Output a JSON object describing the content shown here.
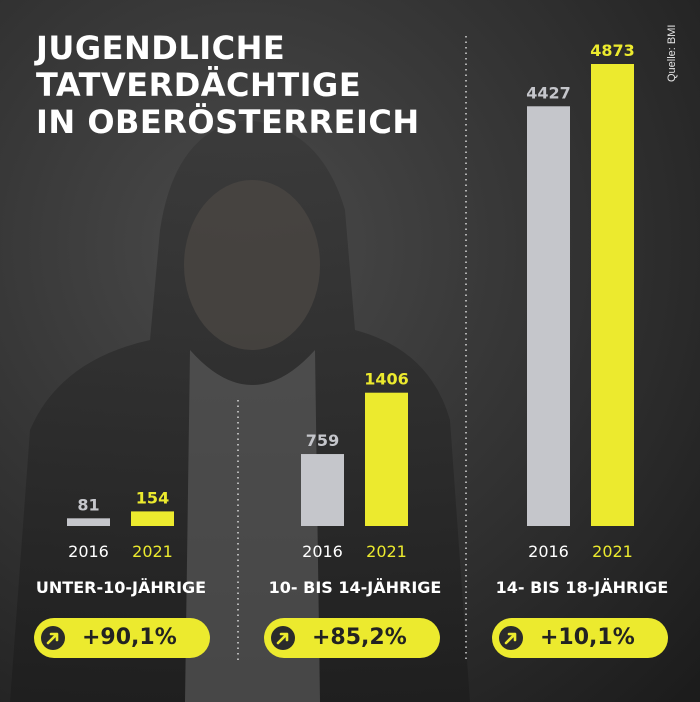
{
  "title_lines": [
    "JUGENDLICHE",
    "TATVERDÄCHTIGE",
    "IN OBERÖSTERREICH"
  ],
  "source": "Quelle: BMI",
  "colors": {
    "bar_2016": "#c5c6cb",
    "bar_2021": "#ecea2e",
    "label_2016": "#c5c6cb",
    "label_2021": "#ecea2e"
  },
  "pills": [
    {
      "icon": "arrow-up-right-icon",
      "value": "+90,1%"
    },
    {
      "icon": "arrow-up-right-icon",
      "value": "+85,2%"
    },
    {
      "icon": "arrow-up-right-icon",
      "value": "+10,1%"
    }
  ],
  "chart_data": [
    {
      "type": "bar",
      "title": "UNTER-10-JÄHRIGE",
      "categories": [
        "2016",
        "2021"
      ],
      "values": [
        81,
        154
      ]
    },
    {
      "type": "bar",
      "title": "10- BIS 14-JÄHRIGE",
      "categories": [
        "2016",
        "2021"
      ],
      "values": [
        759,
        1406
      ]
    },
    {
      "type": "bar",
      "title": "14- BIS 18-JÄHRIGE",
      "categories": [
        "2016",
        "2021"
      ],
      "values": [
        4427,
        4873
      ]
    }
  ]
}
